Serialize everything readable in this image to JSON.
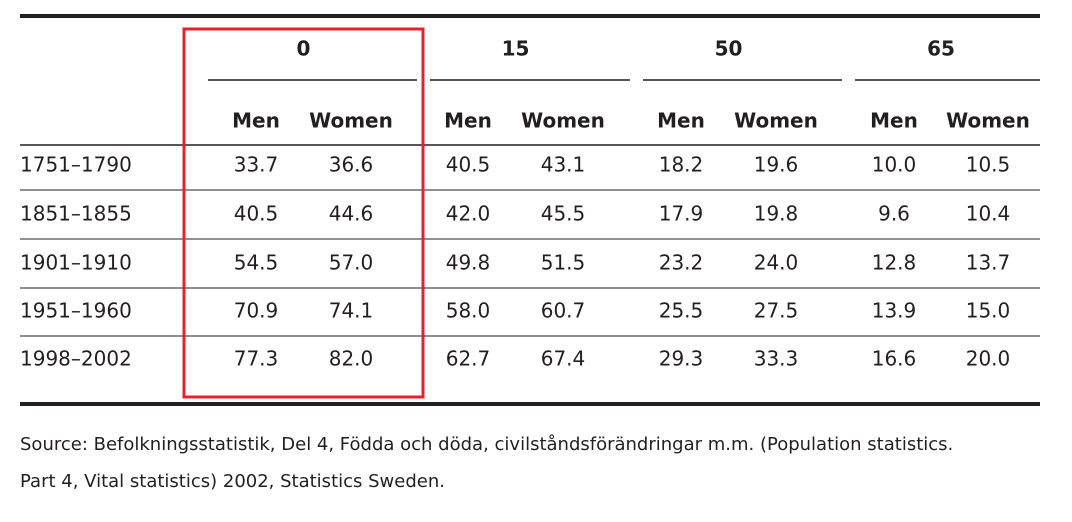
{
  "table": {
    "column_groups": [
      {
        "label": "0",
        "columns": [
          "Men",
          "Women"
        ]
      },
      {
        "label": "15",
        "columns": [
          "Men",
          "Women"
        ]
      },
      {
        "label": "50",
        "columns": [
          "Men",
          "Women"
        ]
      },
      {
        "label": "65",
        "columns": [
          "Men",
          "Women"
        ]
      }
    ],
    "rows": [
      {
        "period": "1751–1790",
        "values": [
          "33.7",
          "36.6",
          "40.5",
          "43.1",
          "18.2",
          "19.6",
          "10.0",
          "10.5"
        ]
      },
      {
        "period": "1851–1855",
        "values": [
          "40.5",
          "44.6",
          "42.0",
          "45.5",
          "17.9",
          "19.8",
          "9.6",
          "10.4"
        ]
      },
      {
        "period": "1901–1910",
        "values": [
          "54.5",
          "57.0",
          "49.8",
          "51.5",
          "23.2",
          "24.0",
          "12.8",
          "13.7"
        ]
      },
      {
        "period": "1951–1960",
        "values": [
          "70.9",
          "74.1",
          "58.0",
          "60.7",
          "25.5",
          "27.5",
          "13.9",
          "15.0"
        ]
      },
      {
        "period": "1998–2002",
        "values": [
          "77.3",
          "82.0",
          "62.7",
          "67.4",
          "29.3",
          "33.3",
          "16.6",
          "20.0"
        ]
      }
    ]
  },
  "source": [
    "Source: Befolkningsstatistik, Del 4, Födda och döda, civilståndsförändringar m.m. (Population statistics.",
    "Part 4, Vital statistics) 2002, Statistics Sweden."
  ]
}
